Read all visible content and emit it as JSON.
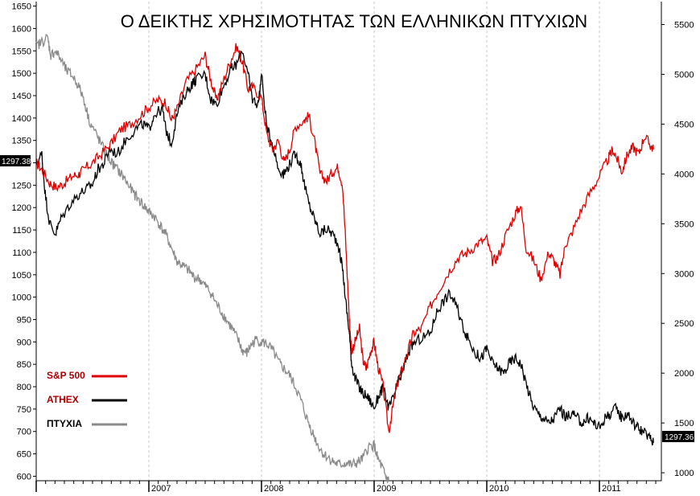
{
  "chart_data": {
    "type": "line",
    "title": "Ο ΔΕΙΚΤΗΣ ΧΡΗΣΙΜΟΤΗΤΑΣ ΤΩΝ ΕΛΛΗΝΙΚΩΝ ΠΤΥΧΙΩΝ",
    "left_axis": {
      "ylim": [
        590,
        1660
      ],
      "ticks": [
        600,
        650,
        700,
        750,
        800,
        850,
        900,
        950,
        1000,
        1050,
        1100,
        1150,
        1200,
        1250,
        1300,
        1350,
        1400,
        1450,
        1500,
        1550,
        1600,
        1650
      ],
      "tick_labels": [
        "600",
        "650",
        "700",
        "750",
        "800",
        "850",
        "900",
        "950",
        "1000",
        "1050",
        "1100",
        "1150",
        "1200",
        "1250",
        "1300",
        "1350",
        "1400",
        "1450",
        "1500",
        "1550",
        "1600",
        "1650"
      ],
      "price_tag": "1297.38"
    },
    "right_axis": {
      "ylim": [
        920,
        5730
      ],
      "ticks": [
        1000,
        1500,
        2000,
        2500,
        3000,
        3500,
        4000,
        4500,
        5000,
        5500
      ],
      "tick_labels": [
        "1000",
        "1500",
        "2000",
        "2500",
        "3000",
        "3500",
        "4000",
        "4500",
        "5000",
        "5500"
      ],
      "price_tag": "1297.36"
    },
    "x_axis": {
      "xlim": [
        2006.0,
        2011.55
      ],
      "year_labels": [
        "2007",
        "2008",
        "2009",
        "2010",
        "2011"
      ],
      "year_positions": [
        2007.0,
        2008.0,
        2009.0,
        2010.0,
        2011.0
      ],
      "vertical_gridlines": [
        2007.0,
        2008.0,
        2009.0,
        2010.0,
        2011.0
      ]
    },
    "series": [
      {
        "name": "S&P 500",
        "color": "#e00000",
        "axis": "left",
        "points": [
          [
            2006.0,
            1300
          ],
          [
            2006.05,
            1285
          ],
          [
            2006.12,
            1255
          ],
          [
            2006.18,
            1245
          ],
          [
            2006.25,
            1255
          ],
          [
            2006.32,
            1270
          ],
          [
            2006.38,
            1275
          ],
          [
            2006.42,
            1285
          ],
          [
            2006.5,
            1300
          ],
          [
            2006.58,
            1320
          ],
          [
            2006.67,
            1345
          ],
          [
            2006.75,
            1375
          ],
          [
            2006.83,
            1385
          ],
          [
            2006.92,
            1405
          ],
          [
            2007.0,
            1425
          ],
          [
            2007.08,
            1440
          ],
          [
            2007.15,
            1435
          ],
          [
            2007.2,
            1395
          ],
          [
            2007.25,
            1420
          ],
          [
            2007.33,
            1480
          ],
          [
            2007.42,
            1510
          ],
          [
            2007.5,
            1540
          ],
          [
            2007.55,
            1485
          ],
          [
            2007.6,
            1440
          ],
          [
            2007.65,
            1475
          ],
          [
            2007.72,
            1525
          ],
          [
            2007.78,
            1560
          ],
          [
            2007.83,
            1525
          ],
          [
            2007.88,
            1465
          ],
          [
            2007.92,
            1470
          ],
          [
            2008.0,
            1445
          ],
          [
            2008.05,
            1360
          ],
          [
            2008.1,
            1330
          ],
          [
            2008.15,
            1350
          ],
          [
            2008.2,
            1300
          ],
          [
            2008.25,
            1330
          ],
          [
            2008.3,
            1380
          ],
          [
            2008.38,
            1395
          ],
          [
            2008.42,
            1405
          ],
          [
            2008.47,
            1350
          ],
          [
            2008.52,
            1275
          ],
          [
            2008.58,
            1260
          ],
          [
            2008.63,
            1280
          ],
          [
            2008.68,
            1290
          ],
          [
            2008.72,
            1250
          ],
          [
            2008.75,
            1110
          ],
          [
            2008.78,
            950
          ],
          [
            2008.8,
            880
          ],
          [
            2008.83,
            900
          ],
          [
            2008.87,
            930
          ],
          [
            2008.9,
            860
          ],
          [
            2008.93,
            840
          ],
          [
            2008.97,
            880
          ],
          [
            2009.0,
            900
          ],
          [
            2009.03,
            850
          ],
          [
            2009.08,
            800
          ],
          [
            2009.13,
            700
          ],
          [
            2009.17,
            760
          ],
          [
            2009.21,
            810
          ],
          [
            2009.25,
            840
          ],
          [
            2009.3,
            880
          ],
          [
            2009.35,
            920
          ],
          [
            2009.42,
            930
          ],
          [
            2009.5,
            980
          ],
          [
            2009.58,
            1020
          ],
          [
            2009.67,
            1060
          ],
          [
            2009.75,
            1090
          ],
          [
            2009.83,
            1100
          ],
          [
            2009.92,
            1120
          ],
          [
            2010.0,
            1130
          ],
          [
            2010.05,
            1080
          ],
          [
            2010.1,
            1090
          ],
          [
            2010.17,
            1140
          ],
          [
            2010.25,
            1185
          ],
          [
            2010.3,
            1205
          ],
          [
            2010.35,
            1110
          ],
          [
            2010.42,
            1080
          ],
          [
            2010.48,
            1040
          ],
          [
            2010.55,
            1100
          ],
          [
            2010.6,
            1080
          ],
          [
            2010.65,
            1050
          ],
          [
            2010.7,
            1120
          ],
          [
            2010.75,
            1140
          ],
          [
            2010.83,
            1190
          ],
          [
            2010.92,
            1235
          ],
          [
            2011.0,
            1270
          ],
          [
            2011.08,
            1310
          ],
          [
            2011.12,
            1330
          ],
          [
            2011.17,
            1300
          ],
          [
            2011.2,
            1280
          ],
          [
            2011.25,
            1320
          ],
          [
            2011.3,
            1335
          ],
          [
            2011.35,
            1320
          ],
          [
            2011.4,
            1360
          ],
          [
            2011.45,
            1340
          ],
          [
            2011.48,
            1330
          ]
        ]
      },
      {
        "name": "ATHEX",
        "color": "#000000",
        "axis": "right",
        "points": [
          [
            2006.0,
            4100
          ],
          [
            2006.05,
            4200
          ],
          [
            2006.08,
            3800
          ],
          [
            2006.12,
            3500
          ],
          [
            2006.17,
            3400
          ],
          [
            2006.22,
            3550
          ],
          [
            2006.3,
            3700
          ],
          [
            2006.38,
            3800
          ],
          [
            2006.45,
            3850
          ],
          [
            2006.5,
            3900
          ],
          [
            2006.55,
            4050
          ],
          [
            2006.6,
            4100
          ],
          [
            2006.65,
            4250
          ],
          [
            2006.72,
            4200
          ],
          [
            2006.8,
            4350
          ],
          [
            2006.88,
            4450
          ],
          [
            2006.95,
            4500
          ],
          [
            2007.0,
            4450
          ],
          [
            2007.05,
            4600
          ],
          [
            2007.12,
            4650
          ],
          [
            2007.15,
            4450
          ],
          [
            2007.2,
            4300
          ],
          [
            2007.25,
            4600
          ],
          [
            2007.32,
            4800
          ],
          [
            2007.38,
            4900
          ],
          [
            2007.42,
            4950
          ],
          [
            2007.5,
            5000
          ],
          [
            2007.55,
            4750
          ],
          [
            2007.6,
            4700
          ],
          [
            2007.67,
            4900
          ],
          [
            2007.73,
            5050
          ],
          [
            2007.78,
            5100
          ],
          [
            2007.83,
            5250
          ],
          [
            2007.88,
            5000
          ],
          [
            2007.92,
            4750
          ],
          [
            2007.97,
            4700
          ],
          [
            2008.0,
            5000
          ],
          [
            2008.05,
            4450
          ],
          [
            2008.1,
            4300
          ],
          [
            2008.15,
            4050
          ],
          [
            2008.2,
            4000
          ],
          [
            2008.25,
            4100
          ],
          [
            2008.3,
            4200
          ],
          [
            2008.35,
            4100
          ],
          [
            2008.38,
            3900
          ],
          [
            2008.42,
            3700
          ],
          [
            2008.47,
            3550
          ],
          [
            2008.52,
            3400
          ],
          [
            2008.58,
            3450
          ],
          [
            2008.63,
            3400
          ],
          [
            2008.68,
            3300
          ],
          [
            2008.72,
            3050
          ],
          [
            2008.75,
            2700
          ],
          [
            2008.78,
            2400
          ],
          [
            2008.8,
            2100
          ],
          [
            2008.83,
            1950
          ],
          [
            2008.87,
            1850
          ],
          [
            2008.9,
            1800
          ],
          [
            2008.95,
            1750
          ],
          [
            2009.0,
            1650
          ],
          [
            2009.05,
            1800
          ],
          [
            2009.08,
            1850
          ],
          [
            2009.13,
            1650
          ],
          [
            2009.17,
            1750
          ],
          [
            2009.21,
            1900
          ],
          [
            2009.25,
            2000
          ],
          [
            2009.3,
            2200
          ],
          [
            2009.35,
            2300
          ],
          [
            2009.42,
            2350
          ],
          [
            2009.5,
            2400
          ],
          [
            2009.55,
            2600
          ],
          [
            2009.6,
            2700
          ],
          [
            2009.67,
            2800
          ],
          [
            2009.72,
            2700
          ],
          [
            2009.78,
            2500
          ],
          [
            2009.83,
            2350
          ],
          [
            2009.9,
            2200
          ],
          [
            2009.95,
            2150
          ],
          [
            2010.0,
            2250
          ],
          [
            2010.05,
            2100
          ],
          [
            2010.1,
            2050
          ],
          [
            2010.15,
            2000
          ],
          [
            2010.2,
            2100
          ],
          [
            2010.25,
            2150
          ],
          [
            2010.3,
            2100
          ],
          [
            2010.35,
            1900
          ],
          [
            2010.4,
            1700
          ],
          [
            2010.45,
            1600
          ],
          [
            2010.5,
            1550
          ],
          [
            2010.55,
            1500
          ],
          [
            2010.6,
            1550
          ],
          [
            2010.65,
            1650
          ],
          [
            2010.7,
            1550
          ],
          [
            2010.75,
            1600
          ],
          [
            2010.8,
            1550
          ],
          [
            2010.85,
            1500
          ],
          [
            2010.9,
            1550
          ],
          [
            2010.95,
            1500
          ],
          [
            2011.0,
            1450
          ],
          [
            2011.05,
            1550
          ],
          [
            2011.1,
            1600
          ],
          [
            2011.15,
            1650
          ],
          [
            2011.2,
            1550
          ],
          [
            2011.25,
            1600
          ],
          [
            2011.3,
            1500
          ],
          [
            2011.35,
            1450
          ],
          [
            2011.4,
            1400
          ],
          [
            2011.45,
            1350
          ],
          [
            2011.48,
            1300
          ]
        ]
      },
      {
        "name": "ΠΤΥΧΙΑ",
        "color": "#8a8a8a",
        "axis": "left",
        "points": [
          [
            2006.0,
            1560
          ],
          [
            2006.05,
            1570
          ],
          [
            2006.1,
            1580
          ],
          [
            2006.13,
            1540
          ],
          [
            2006.17,
            1550
          ],
          [
            2006.22,
            1530
          ],
          [
            2006.27,
            1505
          ],
          [
            2006.32,
            1495
          ],
          [
            2006.37,
            1475
          ],
          [
            2006.42,
            1445
          ],
          [
            2006.47,
            1395
          ],
          [
            2006.52,
            1370
          ],
          [
            2006.57,
            1345
          ],
          [
            2006.62,
            1320
          ],
          [
            2006.67,
            1300
          ],
          [
            2006.72,
            1285
          ],
          [
            2006.77,
            1270
          ],
          [
            2006.82,
            1250
          ],
          [
            2006.87,
            1230
          ],
          [
            2006.92,
            1215
          ],
          [
            2006.97,
            1200
          ],
          [
            2007.0,
            1190
          ],
          [
            2007.05,
            1180
          ],
          [
            2007.1,
            1160
          ],
          [
            2007.15,
            1140
          ],
          [
            2007.2,
            1110
          ],
          [
            2007.25,
            1080
          ],
          [
            2007.3,
            1070
          ],
          [
            2007.35,
            1060
          ],
          [
            2007.4,
            1045
          ],
          [
            2007.45,
            1040
          ],
          [
            2007.5,
            1025
          ],
          [
            2007.55,
            1010
          ],
          [
            2007.6,
            985
          ],
          [
            2007.65,
            965
          ],
          [
            2007.7,
            945
          ],
          [
            2007.75,
            925
          ],
          [
            2007.8,
            900
          ],
          [
            2007.83,
            880
          ],
          [
            2007.87,
            875
          ],
          [
            2007.9,
            890
          ],
          [
            2007.95,
            905
          ],
          [
            2008.0,
            900
          ],
          [
            2008.05,
            895
          ],
          [
            2008.1,
            880
          ],
          [
            2008.15,
            855
          ],
          [
            2008.2,
            840
          ],
          [
            2008.25,
            825
          ],
          [
            2008.3,
            800
          ],
          [
            2008.35,
            770
          ],
          [
            2008.4,
            730
          ],
          [
            2008.45,
            700
          ],
          [
            2008.5,
            670
          ],
          [
            2008.55,
            650
          ],
          [
            2008.6,
            640
          ],
          [
            2008.65,
            630
          ],
          [
            2008.7,
            625
          ],
          [
            2008.75,
            630
          ],
          [
            2008.8,
            625
          ],
          [
            2008.85,
            630
          ],
          [
            2008.9,
            640
          ],
          [
            2008.95,
            665
          ],
          [
            2009.0,
            670
          ],
          [
            2009.03,
            640
          ],
          [
            2009.07,
            620
          ],
          [
            2009.1,
            600
          ],
          [
            2009.13,
            590
          ]
        ],
        "gaps_after_x": [
          2007.92
        ]
      }
    ],
    "legend": {
      "placement": "bottom-left",
      "entries": [
        {
          "label": "S&P 500",
          "color": "#e00000",
          "text_color": "#aa0000"
        },
        {
          "label": "ATHEX",
          "color": "#000000",
          "text_color": "#aa0000"
        },
        {
          "label": "ΠΤΥΧΙΑ",
          "color": "#8a8a8a",
          "text_color": "#000000"
        }
      ]
    },
    "grid": {
      "horizontal": false,
      "vertical": "dashed"
    }
  }
}
